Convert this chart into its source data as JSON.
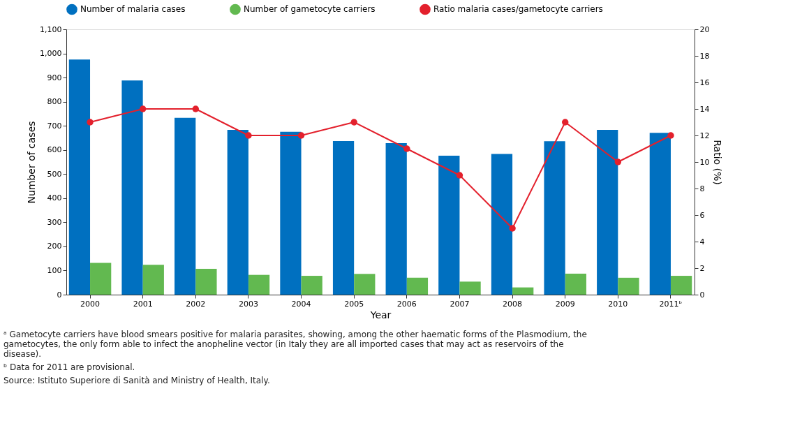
{
  "chart_data": {
    "type": "bar",
    "xlabel": "Year",
    "ylabel": "Number of cases",
    "y2label": "Ratio (%)",
    "categories": [
      "2000",
      "2001",
      "2002",
      "2003",
      "2004",
      "2005",
      "2006",
      "2007",
      "2008",
      "2009",
      "2010",
      "2011ᵇ"
    ],
    "series": [
      {
        "name": "Number of malaria cases",
        "color": "#0070c0",
        "values": [
          975,
          888,
          733,
          683,
          675,
          637,
          628,
          576,
          583,
          636,
          683,
          671
        ]
      },
      {
        "name": "Number of gametocyte carriers",
        "color": "#62b950",
        "values": [
          132,
          124,
          107,
          82,
          78,
          86,
          70,
          54,
          30,
          87,
          70,
          78
        ]
      },
      {
        "name": "Ratio malaria cases/gametocyte carriers",
        "color": "#e3202c",
        "type": "line",
        "axis": "y2",
        "values": [
          13,
          14,
          14,
          12,
          12,
          13,
          11,
          9,
          5,
          13,
          10,
          12
        ]
      }
    ],
    "ylim": [
      0,
      1100
    ],
    "yticks": [
      0,
      100,
      200,
      300,
      400,
      500,
      600,
      700,
      800,
      900,
      {
        "value": 1000,
        "label": "1,000"
      },
      {
        "value": 1100,
        "label": "1,100"
      }
    ],
    "y2lim": [
      0,
      20
    ],
    "y2ticks": [
      0,
      2,
      4,
      6,
      8,
      10,
      12,
      14,
      16,
      18,
      20
    ],
    "grid": false,
    "legend": "top",
    "marker": "circle",
    "line_style": "solid",
    "annotations": [
      "ᵃ Gametocyte carriers have blood smears positive for malaria parasites, showing, among the other haematic forms of the Plasmodium, the gametocytes, the only form able to infect the anopheline vector (in Italy they are all imported cases that may act as reservoirs of the disease).",
      "ᵇ Data for 2011 are provisional.",
      "Source: Istituto Superiore di Sanità and Ministry of Health, Italy."
    ]
  }
}
